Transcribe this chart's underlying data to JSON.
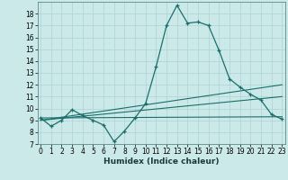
{
  "xlabel": "Humidex (Indice chaleur)",
  "background_color": "#cce9ea",
  "grid_color": "#b2d5d6",
  "line_color": "#1a6e6a",
  "x": [
    0,
    1,
    2,
    3,
    4,
    5,
    6,
    7,
    8,
    9,
    10,
    11,
    12,
    13,
    14,
    15,
    16,
    17,
    18,
    19,
    20,
    21,
    22,
    23
  ],
  "curve_main": [
    9.2,
    8.5,
    9.0,
    9.9,
    9.4,
    9.0,
    8.6,
    7.2,
    8.1,
    9.2,
    10.4,
    13.5,
    17.0,
    18.7,
    17.2,
    17.3,
    17.0,
    14.9,
    12.5,
    11.8,
    11.2,
    10.7,
    9.5,
    9.1
  ],
  "line1_x": [
    0,
    23
  ],
  "line1_y": [
    9.2,
    9.3
  ],
  "line2_x": [
    0,
    23
  ],
  "line2_y": [
    9.0,
    11.0
  ],
  "line3_x": [
    0,
    23
  ],
  "line3_y": [
    9.0,
    12.0
  ],
  "ylim": [
    7,
    19
  ],
  "xlim": [
    -0.3,
    23.3
  ],
  "yticks": [
    7,
    8,
    9,
    10,
    11,
    12,
    13,
    14,
    15,
    16,
    17,
    18
  ],
  "xticks": [
    0,
    1,
    2,
    3,
    4,
    5,
    6,
    7,
    8,
    9,
    10,
    11,
    12,
    13,
    14,
    15,
    16,
    17,
    18,
    19,
    20,
    21,
    22,
    23
  ],
  "tick_fontsize": 5.5,
  "xlabel_fontsize": 6.5
}
